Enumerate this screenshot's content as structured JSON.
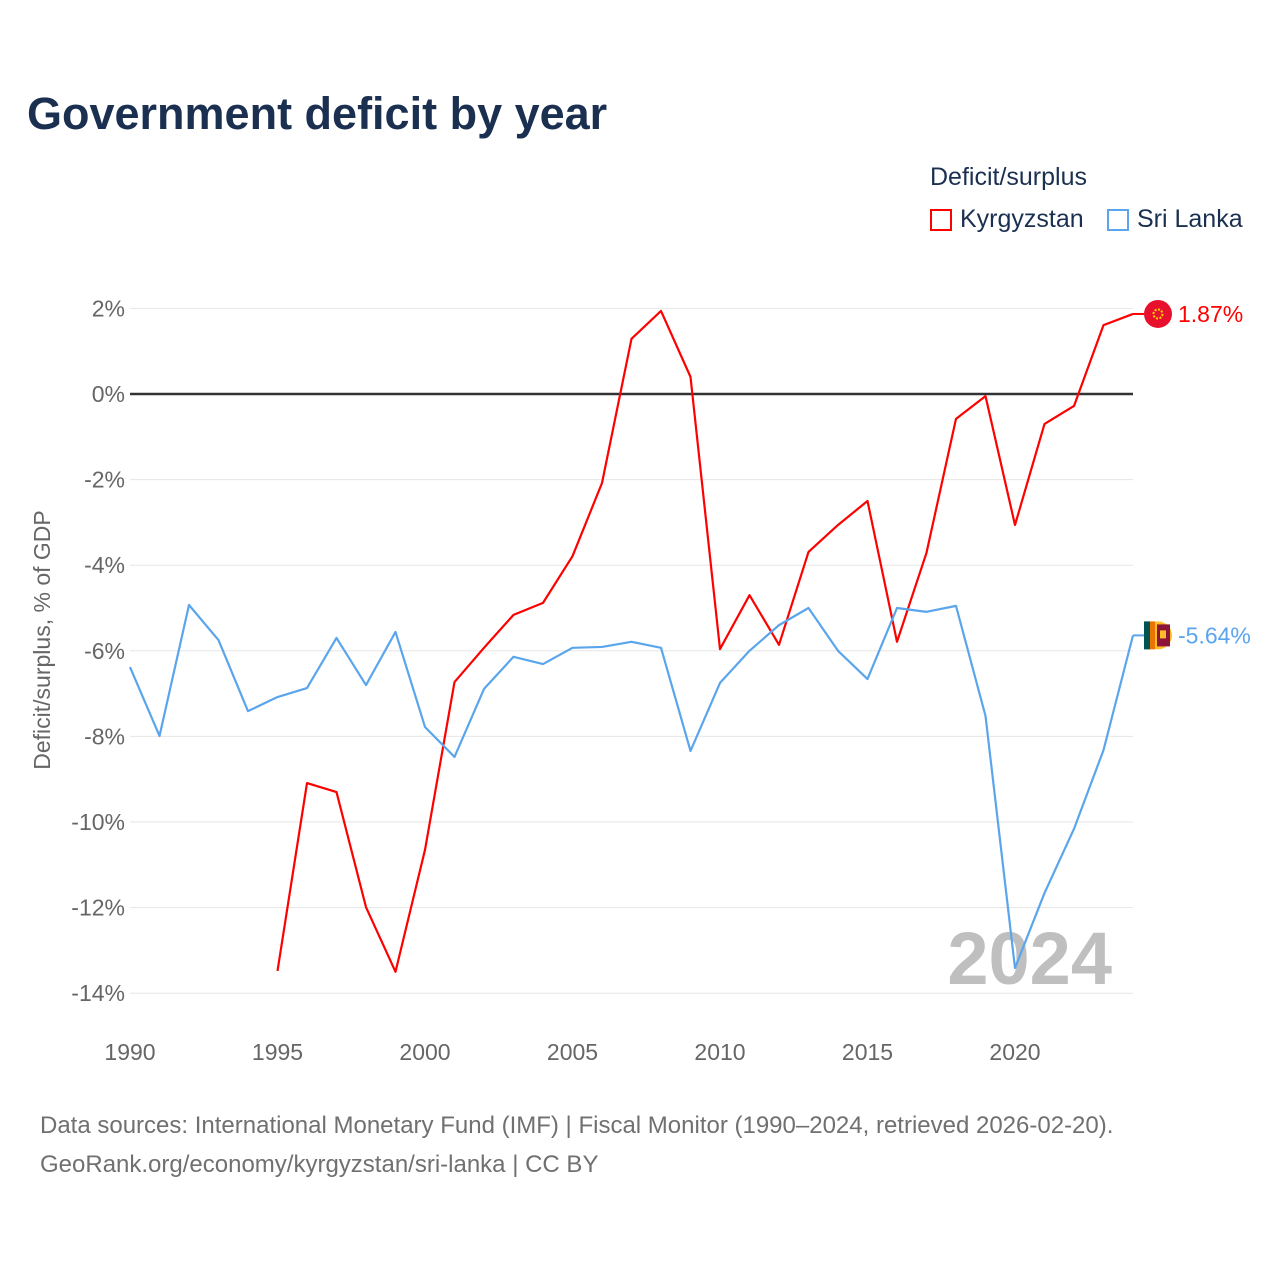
{
  "chart_data": {
    "type": "line",
    "title": "Government deficit by year",
    "ylabel": "Deficit/surplus, % of GDP",
    "xlabel": "",
    "legend_title": "Deficit/surplus",
    "legend_position": "top-right",
    "ylim": [
      -14,
      2
    ],
    "xlim": [
      1990,
      2024
    ],
    "y_ticks": [
      "2%",
      "0%",
      "-2%",
      "-4%",
      "-6%",
      "-8%",
      "-10%",
      "-12%",
      "-14%"
    ],
    "y_tick_values": [
      2,
      0,
      -2,
      -4,
      -6,
      -8,
      -10,
      -12,
      -14
    ],
    "x_ticks": [
      "1990",
      "1995",
      "2000",
      "2005",
      "2010",
      "2015",
      "2020"
    ],
    "x_tick_values": [
      1990,
      1995,
      2000,
      2005,
      2010,
      2015,
      2020
    ],
    "year_watermark": "2024",
    "series": [
      {
        "name": "Kyrgyzstan",
        "color": "#ff0000",
        "end_label": "1.87%",
        "start_year": 1995,
        "values": [
          -13.48,
          -9.09,
          -9.3,
          -11.99,
          -13.5,
          -10.65,
          -6.73,
          -5.93,
          -5.16,
          -4.88,
          -3.79,
          -2.08,
          1.29,
          1.94,
          0.4,
          -5.96,
          -4.7,
          -5.86,
          -3.69,
          -3.06,
          -2.5,
          -5.79,
          -3.71,
          -0.58,
          -0.05,
          -3.06,
          -0.7,
          -0.28,
          1.61,
          1.87
        ]
      },
      {
        "name": "Sri Lanka",
        "color": "#5aa5ec",
        "end_label": "-5.64%",
        "start_year": 1990,
        "values": [
          -6.38,
          -7.99,
          -4.93,
          -5.75,
          -7.41,
          -7.08,
          -6.87,
          -5.7,
          -6.8,
          -5.56,
          -7.78,
          -8.48,
          -6.89,
          -6.14,
          -6.31,
          -5.93,
          -5.91,
          -5.79,
          -5.93,
          -8.34,
          -6.75,
          -6.0,
          -5.4,
          -5.0,
          -6.0,
          -6.66,
          -5.0,
          -5.09,
          -4.95,
          -7.52,
          -13.41,
          -11.66,
          -10.16,
          -8.32,
          -5.64
        ]
      }
    ]
  },
  "footer": {
    "line1": "Data sources: International Monetary Fund (IMF) | Fiscal Monitor (1990–2024, retrieved 2026-02-20).",
    "line2": "GeoRank.org/economy/kyrgyzstan/sri-lanka | CC BY"
  }
}
